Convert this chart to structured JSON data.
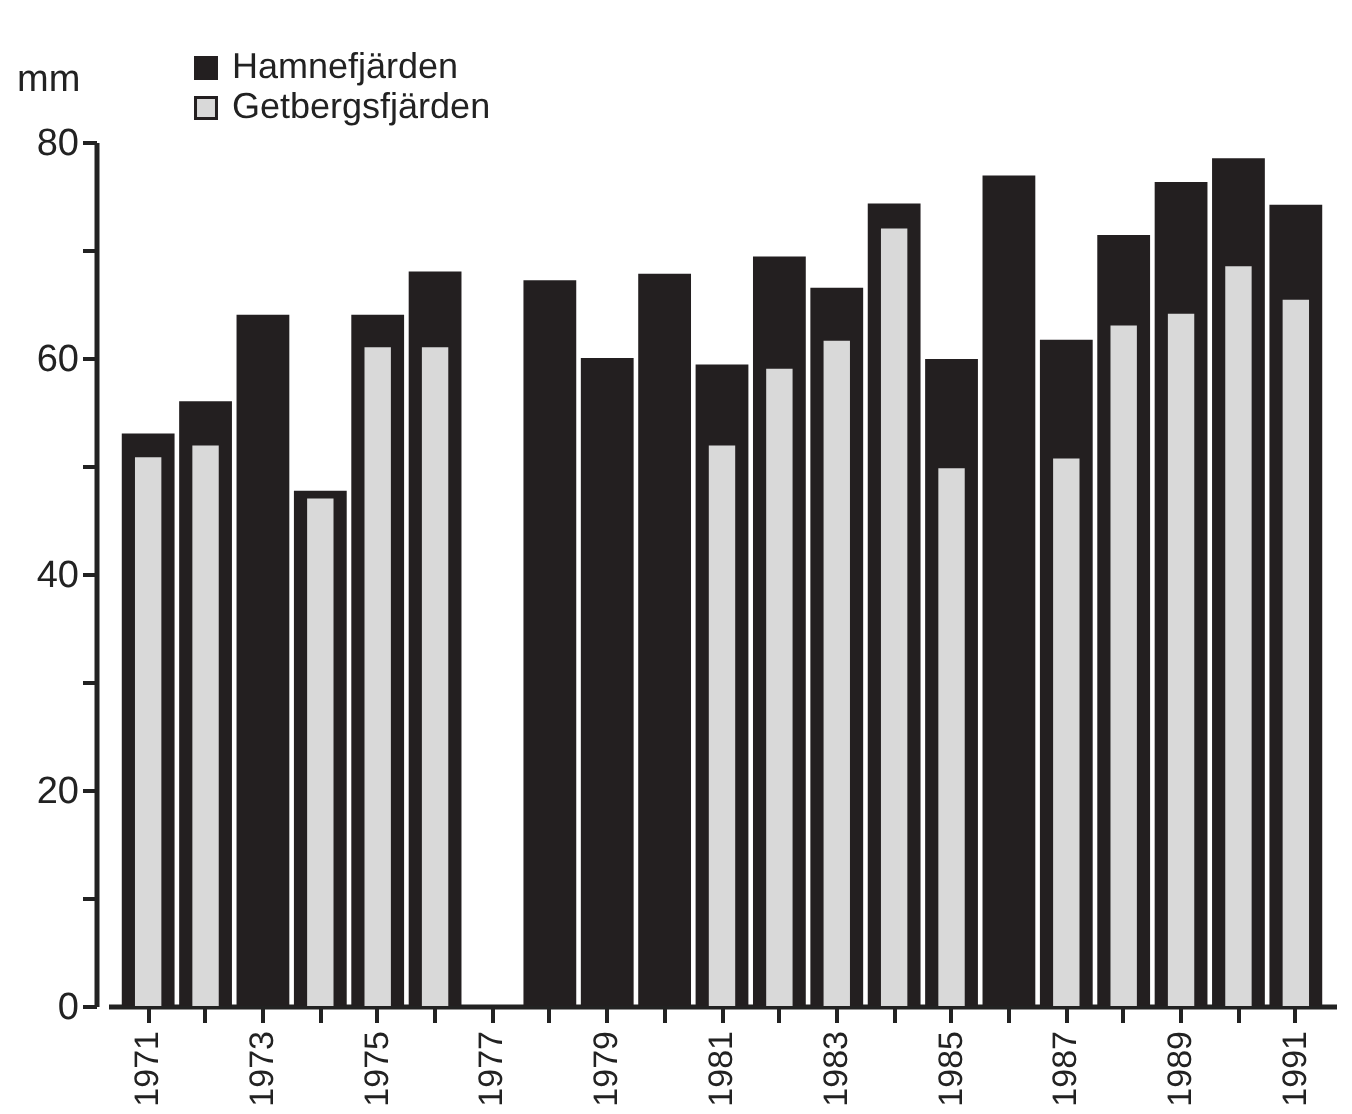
{
  "chart_data": {
    "type": "bar",
    "ylabel": "mm",
    "categories": [
      "1971",
      null,
      "1973",
      null,
      "1975",
      null,
      "1977",
      null,
      "1979",
      null,
      "1981",
      null,
      "1983",
      null,
      "1985",
      null,
      "1987",
      null,
      "1989",
      null,
      "1991"
    ],
    "series": [
      {
        "name": "Hamnefjärden",
        "color": "#231f20",
        "values": [
          53,
          56,
          64,
          47.7,
          64,
          68,
          null,
          67.2,
          60,
          67.8,
          59.4,
          69.4,
          66.5,
          74.3,
          59.9,
          76.9,
          61.7,
          71.4,
          76.3,
          78.5,
          74.2
        ]
      },
      {
        "name": "Getbergsfjärden",
        "color": "#d9d9d9",
        "values": [
          50.8,
          51.9,
          null,
          47,
          61,
          61,
          null,
          null,
          null,
          null,
          51.9,
          59,
          61.6,
          72,
          49.8,
          null,
          50.7,
          63,
          64.1,
          68.5,
          65.4
        ]
      }
    ],
    "ylim": [
      0,
      80
    ],
    "yticks": [
      0,
      {
        "value": 10,
        "label": null
      },
      20,
      {
        "value": 30,
        "label": null
      },
      40,
      {
        "value": 50,
        "label": null
      },
      60,
      {
        "value": 70,
        "label": null
      },
      80
    ],
    "grid": false,
    "legend": "top left"
  }
}
